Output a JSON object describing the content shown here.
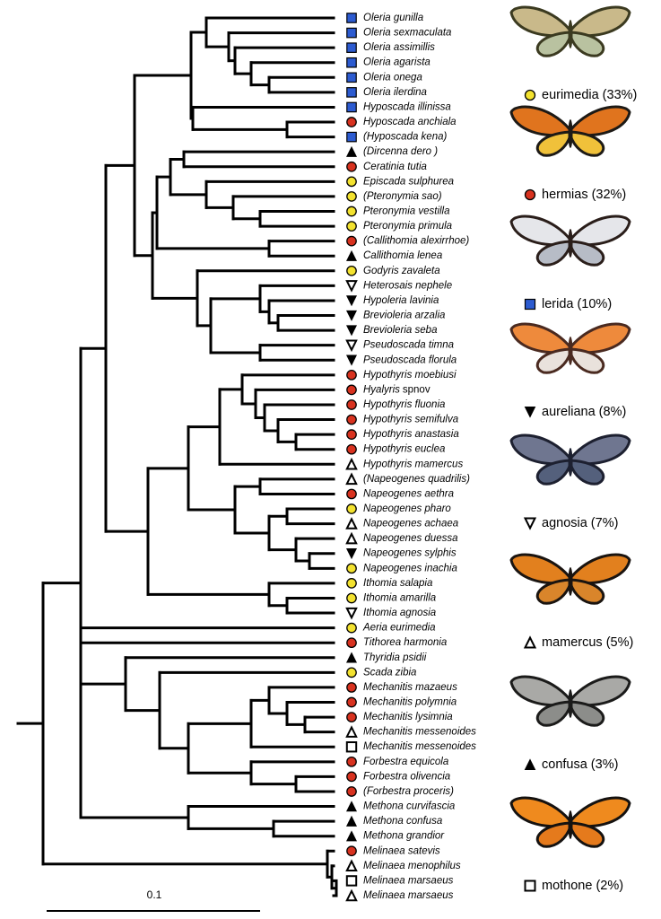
{
  "taxa": [
    {
      "name": "Oleria gunilla",
      "ring": "lerida"
    },
    {
      "name": "Oleria sexmaculata",
      "ring": "lerida"
    },
    {
      "name": "Oleria assimillis",
      "ring": "lerida"
    },
    {
      "name": "Oleria agarista",
      "ring": "lerida"
    },
    {
      "name": "Oleria onega",
      "ring": "lerida"
    },
    {
      "name": "Oleria ilerdina",
      "ring": "lerida"
    },
    {
      "name": "Hyposcada illinissa",
      "ring": "lerida"
    },
    {
      "name": "Hyposcada anchiala",
      "ring": "hermias"
    },
    {
      "name": "(Hyposcada kena)",
      "ring": "lerida"
    },
    {
      "name": "(Dircenna dero )",
      "ring": "confusa"
    },
    {
      "name": "Ceratinia tutia",
      "ring": "hermias"
    },
    {
      "name": "Episcada sulphurea",
      "ring": "eurimedia"
    },
    {
      "name": "(Pteronymia sao)",
      "ring": "eurimedia"
    },
    {
      "name": "Pteronymia vestilla",
      "ring": "eurimedia"
    },
    {
      "name": "Pteronymia primula",
      "ring": "eurimedia"
    },
    {
      "name": "(Callithomia alexirrhoe)",
      "ring": "hermias"
    },
    {
      "name": "Callithomia lenea",
      "ring": "confusa"
    },
    {
      "name": "Godyris zavaleta",
      "ring": "eurimedia"
    },
    {
      "name": "Heterosais nephele",
      "ring": "agnosia"
    },
    {
      "name": "Hypoleria lavinia",
      "ring": "aureliana"
    },
    {
      "name": "Brevioleria arzalia",
      "ring": "aureliana"
    },
    {
      "name": "Brevioleria seba",
      "ring": "aureliana"
    },
    {
      "name": "Pseudoscada timna",
      "ring": "agnosia"
    },
    {
      "name": "Pseudoscada florula",
      "ring": "aureliana"
    },
    {
      "name": "Hypothyris moebiusi",
      "ring": "hermias"
    },
    {
      "name": "Hyalyris",
      "suffix": "spnov",
      "ring": "hermias"
    },
    {
      "name": "Hypothyris fluonia",
      "ring": "hermias"
    },
    {
      "name": "Hypothyris semifulva",
      "ring": "hermias"
    },
    {
      "name": "Hypothyris anastasia",
      "ring": "hermias"
    },
    {
      "name": "Hypothyris euclea",
      "ring": "hermias"
    },
    {
      "name": "Hypothyris mamercus",
      "ring": "mamercus"
    },
    {
      "name": "(Napeogenes quadrilis)",
      "ring": "mamercus"
    },
    {
      "name": "Napeogenes aethra",
      "ring": "hermias"
    },
    {
      "name": "Napeogenes pharo",
      "ring": "eurimedia"
    },
    {
      "name": "Napeogenes achaea",
      "ring": "mamercus"
    },
    {
      "name": "Napeogenes duessa",
      "ring": "mamercus"
    },
    {
      "name": "Napeogenes sylphis",
      "ring": "aureliana"
    },
    {
      "name": "Napeogenes inachia",
      "ring": "eurimedia"
    },
    {
      "name": "Ithomia salapia",
      "ring": "eurimedia"
    },
    {
      "name": "Ithomia amarilla",
      "ring": "eurimedia"
    },
    {
      "name": "Ithomia agnosia",
      "ring": "agnosia"
    },
    {
      "name": "Aeria eurimedia",
      "ring": "eurimedia"
    },
    {
      "name": "Tithorea harmonia",
      "ring": "hermias"
    },
    {
      "name": "Thyridia psidii",
      "ring": "confusa"
    },
    {
      "name": "Scada zibia",
      "ring": "eurimedia"
    },
    {
      "name": "Mechanitis mazaeus",
      "ring": "hermias"
    },
    {
      "name": "Mechanitis polymnia",
      "ring": "hermias"
    },
    {
      "name": "Mechanitis lysimnia",
      "ring": "hermias"
    },
    {
      "name": "Mechanitis messenoides",
      "ring": "mamercus"
    },
    {
      "name": "Mechanitis messenoides",
      "ring": "mothone"
    },
    {
      "name": "Forbestra equicola",
      "ring": "hermias"
    },
    {
      "name": "Forbestra olivencia",
      "ring": "hermias"
    },
    {
      "name": "(Forbestra proceris)",
      "ring": "hermias"
    },
    {
      "name": "Methona curvifascia",
      "ring": "confusa"
    },
    {
      "name": "Methona confusa",
      "ring": "confusa"
    },
    {
      "name": "Methona grandior",
      "ring": "confusa"
    },
    {
      "name": "Melinaea satevis",
      "ring": "hermias"
    },
    {
      "name": "Melinaea menophilus",
      "ring": "mamercus"
    },
    {
      "name": "Melinaea marsaeus",
      "ring": "mothone"
    },
    {
      "name": "Melinaea marsaeus",
      "ring": "mamercus"
    }
  ],
  "rings": [
    {
      "name": "eurimedia",
      "share": "(33%)"
    },
    {
      "name": "hermias",
      "share": "(32%)"
    },
    {
      "name": "lerida",
      "share": "(10%)"
    },
    {
      "name": "aureliana",
      "share": "(8%)"
    },
    {
      "name": "agnosia",
      "share": "(7%)"
    },
    {
      "name": "mamercus",
      "share": "(5%)"
    },
    {
      "name": "confusa",
      "share": "(3%)"
    },
    {
      "name": "mothone",
      "share": "(2%)"
    }
  ],
  "scale_bar": "0.1"
}
